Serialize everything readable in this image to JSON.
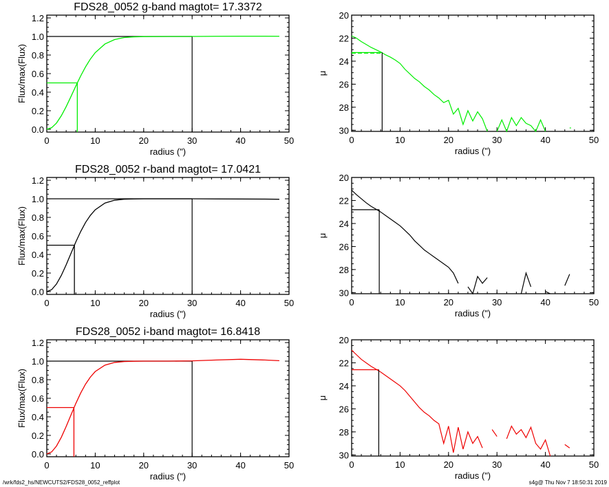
{
  "footer": {
    "left": "/wrk/fds2_hs/NEWCUTS2/FDS28_0052_reffplot",
    "right": "s4g@  Thu Nov  7 18:50:31 2019"
  },
  "chart_data": [
    {
      "type": "line",
      "band": "g",
      "color": "#00ee00",
      "title": "FDS28_0052 g-band  magtot=      17.3372",
      "xlabel": "radius (\")",
      "ylabel": "Flux/max(Flux)",
      "xlim": [
        0,
        50
      ],
      "ylim": [
        0.0,
        1.2
      ],
      "xticks": [
        "0",
        "10",
        "20",
        "30",
        "40",
        "50"
      ],
      "yticks": [
        "0.0",
        "0.2",
        "0.4",
        "0.6",
        "0.8",
        "1.0",
        "1.2"
      ],
      "x": [
        0,
        1,
        2,
        3,
        4,
        5,
        6,
        7,
        8,
        9,
        10,
        12,
        14,
        16,
        18,
        20,
        25,
        30,
        35,
        40,
        45,
        48
      ],
      "y": [
        0,
        0.017,
        0.067,
        0.146,
        0.244,
        0.354,
        0.467,
        0.575,
        0.673,
        0.757,
        0.826,
        0.919,
        0.967,
        0.989,
        0.996,
        0.999,
        1.0,
        1.0,
        1.002,
        1.003,
        1.003,
        1.002
      ],
      "half_light_radius": 6.3,
      "total_radius": 30
    },
    {
      "type": "line",
      "band": "g",
      "color": "#00ee00",
      "xlabel": "radius (\")",
      "ylabel": "μ",
      "xlim": [
        0,
        50
      ],
      "ylim": [
        30,
        20
      ],
      "inverted_y": true,
      "xticks": [
        "0",
        "10",
        "20",
        "30",
        "40",
        "50"
      ],
      "yticks": [
        "20",
        "22",
        "24",
        "26",
        "28",
        "30"
      ],
      "x_start": 0,
      "x_step": 1,
      "y": [
        21.8,
        22.0,
        22.3,
        22.55,
        22.8,
        23.0,
        23.2,
        23.45,
        23.65,
        23.9,
        24.2,
        24.7,
        25.1,
        25.5,
        25.8,
        26.2,
        26.5,
        26.9,
        27.2,
        27.6,
        27.4,
        28.6,
        28.1,
        29.5,
        28.3,
        29.2,
        28.4,
        29.0,
        30.5,
        null,
        30.5,
        29.1,
        30.5,
        28.9,
        29.6,
        28.9,
        29.4,
        29.6,
        30.5,
        29.1,
        30.5,
        null,
        null,
        null,
        null,
        29.8
      ],
      "effective_radius": 6.3,
      "mu_e": 23.25,
      "mean_mu_e": 23.3
    },
    {
      "type": "line",
      "band": "r",
      "color": "#000000",
      "title": "FDS28_0052 r-band  magtot=      17.0421",
      "xlabel": "radius (\")",
      "ylabel": "Flux/max(Flux)",
      "xlim": [
        0,
        50
      ],
      "ylim": [
        0.0,
        1.2
      ],
      "xticks": [
        "0",
        "10",
        "20",
        "30",
        "40",
        "50"
      ],
      "yticks": [
        "0.0",
        "0.2",
        "0.4",
        "0.6",
        "0.8",
        "1.0",
        "1.2"
      ],
      "x": [
        0,
        1,
        2,
        3,
        4,
        5,
        6,
        7,
        8,
        9,
        10,
        12,
        14,
        16,
        18,
        20,
        25,
        30,
        35,
        40,
        45,
        48
      ],
      "y": [
        0,
        0.021,
        0.082,
        0.175,
        0.289,
        0.413,
        0.536,
        0.648,
        0.745,
        0.822,
        0.882,
        0.954,
        0.985,
        0.996,
        0.999,
        1.0,
        1.0,
        1.0,
        0.999,
        0.998,
        0.997,
        0.995
      ],
      "half_light_radius": 5.7,
      "total_radius": 30
    },
    {
      "type": "line",
      "band": "r",
      "color": "#000000",
      "xlabel": "radius (\")",
      "ylabel": "μ",
      "xlim": [
        0,
        50
      ],
      "ylim": [
        30,
        20
      ],
      "inverted_y": true,
      "xticks": [
        "0",
        "10",
        "20",
        "30",
        "40",
        "50"
      ],
      "yticks": [
        "20",
        "22",
        "24",
        "26",
        "28",
        "30"
      ],
      "x_start": 0,
      "x_step": 1,
      "y": [
        21.1,
        21.5,
        21.85,
        22.2,
        22.5,
        22.75,
        23.0,
        23.3,
        23.6,
        23.9,
        24.2,
        24.6,
        25.0,
        25.5,
        25.9,
        26.3,
        26.6,
        26.9,
        27.2,
        27.5,
        27.8,
        28.3,
        29.2,
        null,
        29.5,
        30.5,
        28.6,
        29.2,
        28.7,
        null,
        null,
        null,
        null,
        null,
        null,
        30.5,
        28.3,
        29.5,
        null,
        null,
        29.9,
        30.5,
        null,
        null,
        29.4,
        28.4
      ],
      "effective_radius": 5.7,
      "mu_e": 22.8
    },
    {
      "type": "line",
      "band": "i",
      "color": "#ee0000",
      "title": "FDS28_0052 i-band  magtot=      16.8418",
      "xlabel": "radius (\")",
      "ylabel": "Flux/max(Flux)",
      "xlim": [
        0,
        50
      ],
      "ylim": [
        0.0,
        1.2
      ],
      "xticks": [
        "0",
        "10",
        "20",
        "30",
        "40",
        "50"
      ],
      "yticks": [
        "0.0",
        "0.2",
        "0.4",
        "0.6",
        "0.8",
        "1.0",
        "1.2"
      ],
      "x": [
        0,
        1,
        2,
        3,
        4,
        5,
        6,
        7,
        8,
        9,
        10,
        12,
        14,
        16,
        18,
        20,
        25,
        30,
        35,
        40,
        45,
        48
      ],
      "y": [
        0,
        0.022,
        0.085,
        0.18,
        0.296,
        0.421,
        0.545,
        0.657,
        0.752,
        0.829,
        0.888,
        0.957,
        0.986,
        0.996,
        0.999,
        1.0,
        1.0,
        1.003,
        1.012,
        1.02,
        1.012,
        1.005
      ],
      "half_light_radius": 5.6,
      "total_radius": 30
    },
    {
      "type": "line",
      "band": "i",
      "color": "#ee0000",
      "xlabel": "radius (\")",
      "ylabel": "μ",
      "xlim": [
        0,
        50
      ],
      "ylim": [
        30,
        20
      ],
      "inverted_y": true,
      "xticks": [
        "0",
        "10",
        "20",
        "30",
        "40",
        "50"
      ],
      "yticks": [
        "20",
        "22",
        "24",
        "26",
        "28",
        "30"
      ],
      "x_start": 0,
      "x_step": 1,
      "y": [
        20.9,
        21.3,
        21.7,
        22.0,
        22.3,
        22.55,
        22.8,
        23.1,
        23.4,
        23.7,
        24.0,
        24.4,
        24.9,
        25.4,
        25.9,
        26.3,
        26.6,
        27.0,
        27.3,
        29.0,
        27.5,
        29.8,
        27.6,
        29.5,
        28.0,
        29.0,
        28.4,
        29.4,
        null,
        27.8,
        28.4,
        null,
        28.6,
        27.5,
        28.2,
        27.8,
        28.5,
        27.6,
        29.0,
        29.5,
        28.7,
        30.3,
        null,
        null,
        29.1,
        29.4
      ],
      "effective_radius": 5.6,
      "mu_e": 22.6
    }
  ]
}
